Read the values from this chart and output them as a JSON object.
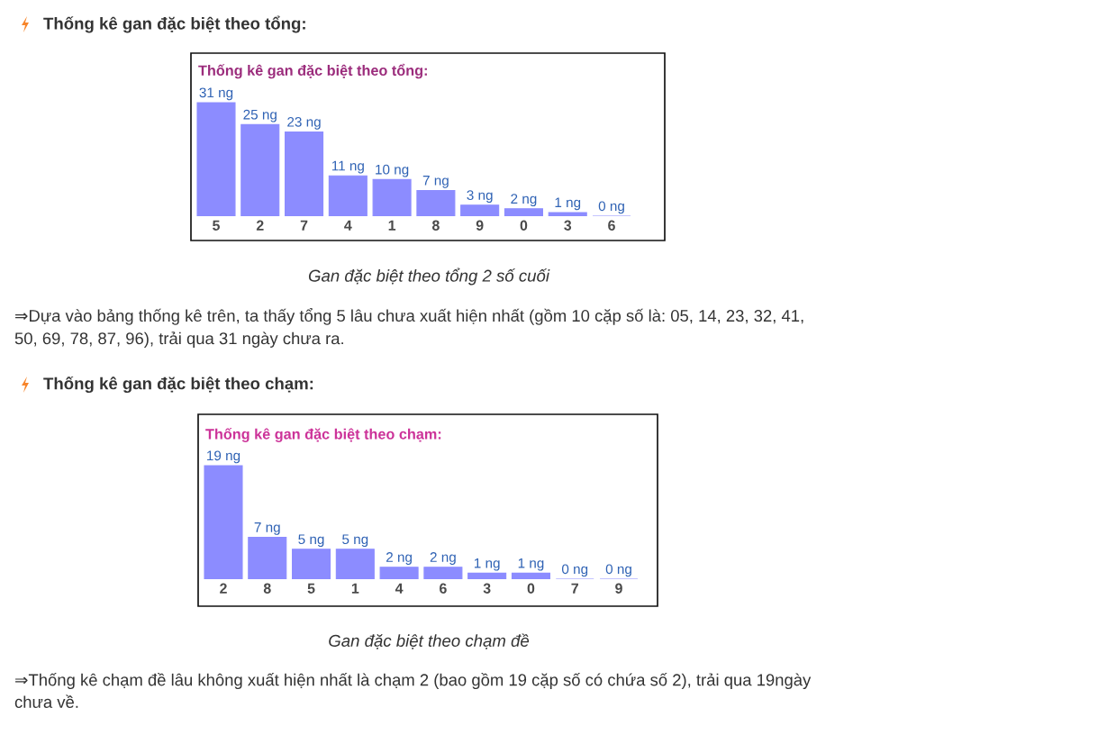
{
  "chart_data": [
    {
      "type": "bar",
      "title": "Thống kê gan đặc biệt theo tổng:",
      "categories": [
        "5",
        "2",
        "7",
        "4",
        "1",
        "8",
        "9",
        "0",
        "3",
        "6"
      ],
      "values": [
        31,
        25,
        23,
        11,
        10,
        7,
        3,
        2,
        1,
        0
      ],
      "value_labels": [
        "31 ng",
        "25 ng",
        "23 ng",
        "11 ng",
        "10 ng",
        "7 ng",
        "3 ng",
        "2 ng",
        "1 ng",
        "0 ng"
      ],
      "color": "#8c8cff",
      "annotations": [
        "Thống kê gan đặc biệt theo tổng:",
        "Gan đặc biệt theo tổng 2 số cuối",
        "⇒Dựa vào bảng thống kê trên, ta thấy tổng 5 lâu chưa xuất hiện nhất (gồm 10 cặp số là: 05, 14, 23, 32, 41, 50, 69, 78, 87, 96), trải qua 31 ngày chưa ra."
      ]
    },
    {
      "type": "bar",
      "title": "Thống kê gan đặc biệt theo chạm:",
      "categories": [
        "2",
        "8",
        "5",
        "1",
        "4",
        "6",
        "3",
        "0",
        "7",
        "9"
      ],
      "values": [
        19,
        7,
        5,
        5,
        2,
        2,
        1,
        1,
        0,
        0
      ],
      "value_labels": [
        "19 ng",
        "7 ng",
        "5 ng",
        "5 ng",
        "2 ng",
        "2 ng",
        "1 ng",
        "1 ng",
        "0 ng",
        "0 ng"
      ],
      "color": "#8c8cff",
      "annotations": [
        "Thống kê gan đặc biệt theo chạm:",
        "Gan đặc biệt theo chạm đề",
        "⇒Thống kê chạm đề lâu không xuất hiện nhất là chạm 2 (bao gồm 19 cặp số có chứa số 2), trải qua 19ngày chưa về."
      ]
    }
  ]
}
